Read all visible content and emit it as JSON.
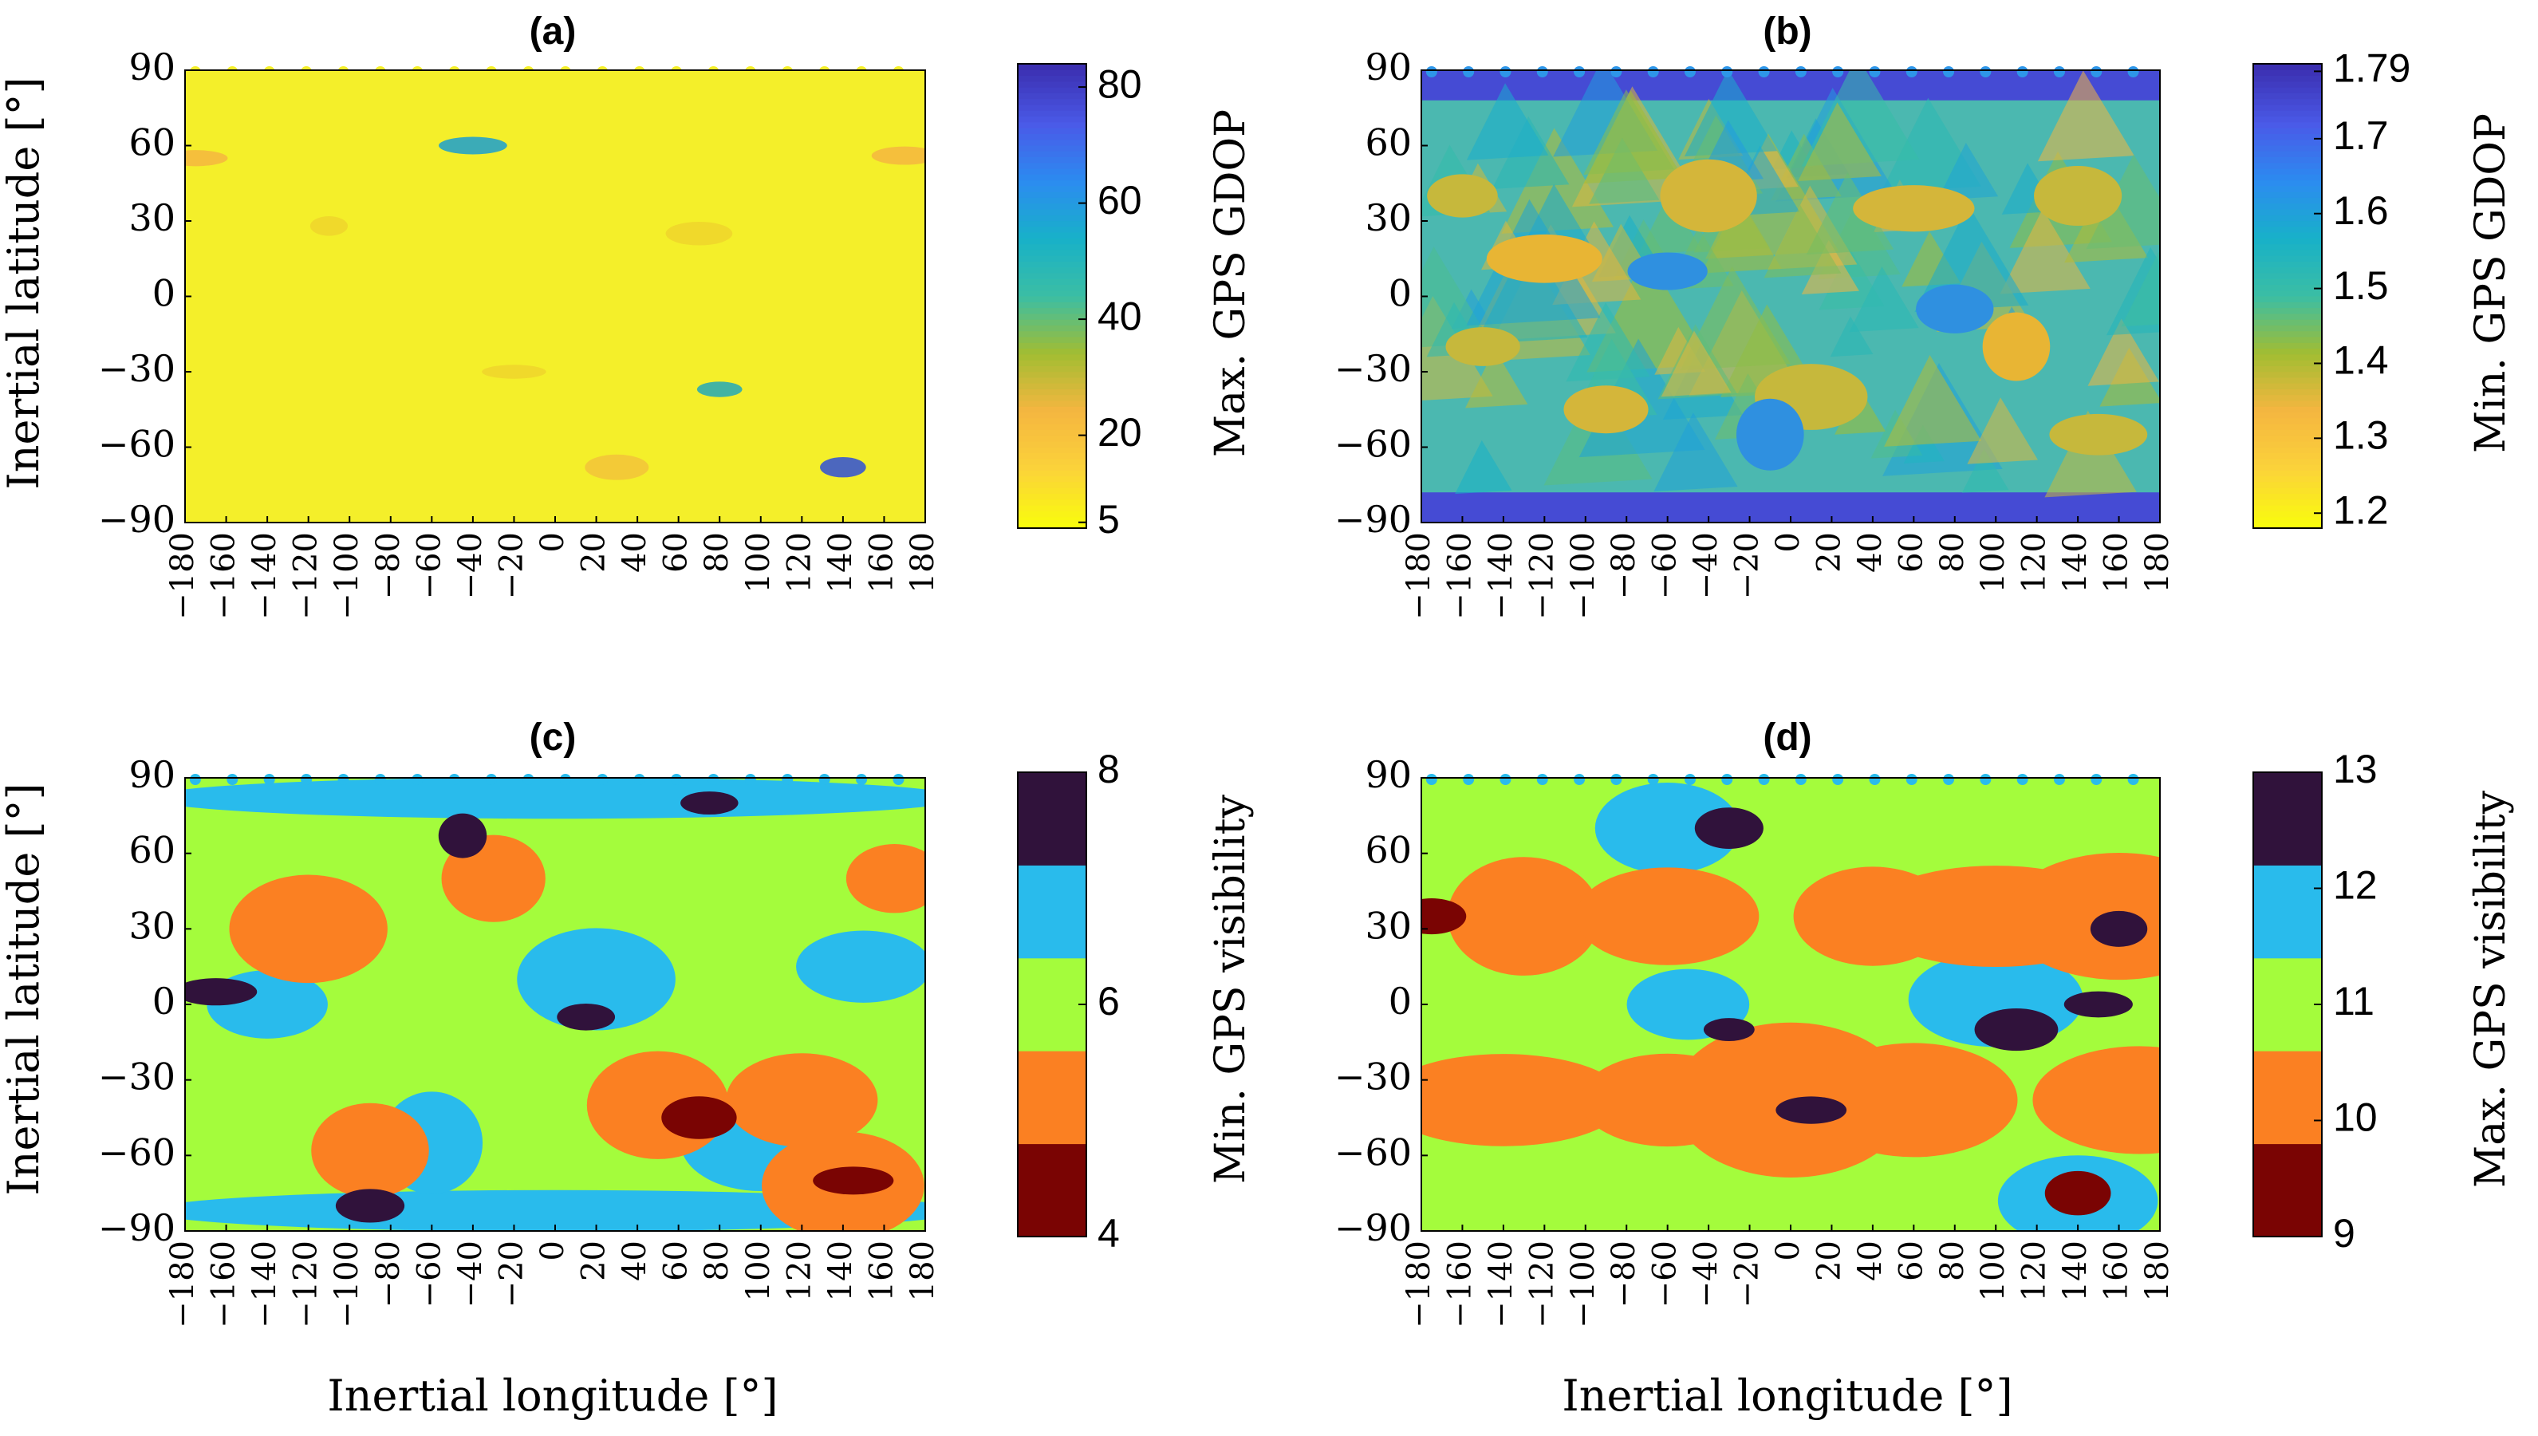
{
  "figure": {
    "x_axis_label": "Inertial longitude [°]",
    "y_axis_label": "Inertial latitude [°]"
  },
  "chart_data": [
    {
      "panel": "(a)",
      "type": "heatmap",
      "title": "(a)",
      "xlabel": "",
      "ylabel": "Inertial latitude [°]",
      "x_ticks": [
        "−180",
        "−160",
        "−140",
        "−120",
        "−100",
        "−80",
        "−60",
        "−40",
        "−20",
        "0",
        "20",
        "40",
        "60",
        "80",
        "100",
        "120",
        "140",
        "160",
        "180"
      ],
      "y_ticks": [
        "90",
        "60",
        "30",
        "0",
        "−30",
        "−60",
        "−90"
      ],
      "xlim": [
        -180,
        180
      ],
      "ylim": [
        -90,
        90
      ],
      "colorbar": {
        "label": "Max. GPS GDOP",
        "scale": "continuous",
        "range": [
          4,
          84
        ],
        "ticks": [
          "80",
          "60",
          "40",
          "20",
          "5"
        ],
        "tick_values": [
          80,
          60,
          40,
          20,
          5
        ],
        "colors": [
          "#f9fb0e",
          "#fbd23a",
          "#f5b640",
          "#a2bd32",
          "#3bbea4",
          "#18b1c8",
          "#2b8cf0",
          "#4a5ae8",
          "#3b2fb0"
        ]
      },
      "background_color": "#f4ef2a",
      "features": [
        {
          "lon": -175,
          "lat": 55,
          "value": 16,
          "color": "#f5b640"
        },
        {
          "lon": 170,
          "lat": 56,
          "value": 16,
          "color": "#f5b640"
        },
        {
          "lon": -40,
          "lat": 60,
          "value": 55,
          "color": "#1a9fd0"
        },
        {
          "lon": 80,
          "lat": -37,
          "value": 45,
          "color": "#22a8b8"
        },
        {
          "lon": 140,
          "lat": -68,
          "value": 70,
          "color": "#2e4fd8"
        },
        {
          "lon": 30,
          "lat": -68,
          "value": 14,
          "color": "#f2c33a"
        },
        {
          "lon": -110,
          "lat": 28,
          "value": 10,
          "color": "#eed52c"
        },
        {
          "lon": 70,
          "lat": 25,
          "value": 10,
          "color": "#eed52c"
        },
        {
          "lon": -20,
          "lat": -30,
          "value": 10,
          "color": "#eed52c"
        }
      ]
    },
    {
      "panel": "(b)",
      "type": "heatmap",
      "title": "(b)",
      "xlabel": "",
      "ylabel": "",
      "x_ticks": [
        "−180",
        "−160",
        "−140",
        "−120",
        "−100",
        "−80",
        "−60",
        "−40",
        "−20",
        "0",
        "20",
        "40",
        "60",
        "80",
        "100",
        "120",
        "140",
        "160",
        "180"
      ],
      "y_ticks": [
        "90",
        "60",
        "30",
        "0",
        "−30",
        "−60",
        "−90"
      ],
      "xlim": [
        -180,
        180
      ],
      "ylim": [
        -90,
        90
      ],
      "colorbar": {
        "label": "Min. GPS GDOP",
        "scale": "continuous",
        "range": [
          1.18,
          1.8
        ],
        "ticks": [
          "1.79",
          "1.7",
          "1.6",
          "1.5",
          "1.4",
          "1.3",
          "1.2"
        ],
        "tick_values": [
          1.79,
          1.7,
          1.6,
          1.5,
          1.4,
          1.3,
          1.2
        ],
        "colors": [
          "#f9fb0e",
          "#fbd23a",
          "#f5b640",
          "#a2bd32",
          "#3bbea4",
          "#18b1c8",
          "#2b8cf0",
          "#4a5ae8",
          "#3b2fb0"
        ]
      },
      "background_color": "#4bb8b0",
      "features": [
        {
          "lon": -120,
          "lat": 15,
          "value": 1.27,
          "color": "#e8b534"
        },
        {
          "lon": 110,
          "lat": -20,
          "value": 1.27,
          "color": "#e8b534"
        },
        {
          "lon": 60,
          "lat": 35,
          "value": 1.3,
          "color": "#d4b63a"
        },
        {
          "lon": -40,
          "lat": 40,
          "value": 1.3,
          "color": "#d4b63a"
        },
        {
          "lon": -90,
          "lat": -45,
          "value": 1.3,
          "color": "#d4b63a"
        },
        {
          "lon": 10,
          "lat": -40,
          "value": 1.32,
          "color": "#c6b83c"
        },
        {
          "lon": 140,
          "lat": 40,
          "value": 1.33,
          "color": "#c6b83c"
        },
        {
          "lon": -150,
          "lat": -20,
          "value": 1.33,
          "color": "#c6b83c"
        },
        {
          "lon": 150,
          "lat": -55,
          "value": 1.32,
          "color": "#c6b83c"
        },
        {
          "lon": -160,
          "lat": 40,
          "value": 1.33,
          "color": "#c6b83c"
        },
        {
          "lon": -60,
          "lat": 10,
          "value": 1.6,
          "color": "#2f90e0"
        },
        {
          "lon": 80,
          "lat": -5,
          "value": 1.6,
          "color": "#2f90e0"
        },
        {
          "lon": -10,
          "lat": -55,
          "value": 1.58,
          "color": "#2f90e0"
        }
      ],
      "pole_band_value": 1.75
    },
    {
      "panel": "(c)",
      "type": "heatmap",
      "title": "(c)",
      "xlabel": "Inertial longitude [°]",
      "ylabel": "Inertial latitude [°]",
      "x_ticks": [
        "−180",
        "−160",
        "−140",
        "−120",
        "−100",
        "−80",
        "−60",
        "−40",
        "−20",
        "0",
        "20",
        "40",
        "60",
        "80",
        "100",
        "120",
        "140",
        "160",
        "180"
      ],
      "y_ticks": [
        "90",
        "60",
        "30",
        "0",
        "−30",
        "−60",
        "−90"
      ],
      "xlim": [
        -180,
        180
      ],
      "ylim": [
        -90,
        90
      ],
      "colorbar": {
        "label": "Min. GPS visibility",
        "scale": "discrete",
        "range": [
          4,
          8
        ],
        "ticks": [
          "8",
          "6",
          "4"
        ],
        "tick_values": [
          8,
          6,
          4
        ],
        "levels": [
          {
            "value": 4,
            "color": "#7a0403"
          },
          {
            "value": 5,
            "color": "#fb8022"
          },
          {
            "value": 6,
            "color": "#a4fc3c"
          },
          {
            "value": 7,
            "color": "#29bbec"
          },
          {
            "value": 8,
            "color": "#30123b"
          }
        ]
      },
      "background_value": 6,
      "features": [
        {
          "lon": 0,
          "lat": 82,
          "value": 7
        },
        {
          "lon": 0,
          "lat": -82,
          "value": 7
        },
        {
          "lon": -140,
          "lat": 0,
          "value": 7
        },
        {
          "lon": 20,
          "lat": 10,
          "value": 7
        },
        {
          "lon": 150,
          "lat": 15,
          "value": 7
        },
        {
          "lon": -60,
          "lat": -55,
          "value": 7
        },
        {
          "lon": 100,
          "lat": -55,
          "value": 7
        },
        {
          "lon": -120,
          "lat": 30,
          "value": 5
        },
        {
          "lon": -30,
          "lat": 50,
          "value": 5
        },
        {
          "lon": 50,
          "lat": -40,
          "value": 5
        },
        {
          "lon": 120,
          "lat": -38,
          "value": 5
        },
        {
          "lon": 140,
          "lat": -72,
          "value": 5
        },
        {
          "lon": -90,
          "lat": -58,
          "value": 5
        },
        {
          "lon": 165,
          "lat": 50,
          "value": 5
        },
        {
          "lon": 75,
          "lat": 80,
          "value": 8
        },
        {
          "lon": -165,
          "lat": 5,
          "value": 8
        },
        {
          "lon": 15,
          "lat": -5,
          "value": 8
        },
        {
          "lon": -90,
          "lat": -80,
          "value": 8
        },
        {
          "lon": -45,
          "lat": 67,
          "value": 8
        },
        {
          "lon": 145,
          "lat": -70,
          "value": 4
        },
        {
          "lon": 70,
          "lat": -45,
          "value": 4
        }
      ]
    },
    {
      "panel": "(d)",
      "type": "heatmap",
      "title": "(d)",
      "xlabel": "Inertial longitude [°]",
      "ylabel": "",
      "x_ticks": [
        "−180",
        "−160",
        "−140",
        "−120",
        "−100",
        "−80",
        "−60",
        "−40",
        "−20",
        "0",
        "20",
        "40",
        "60",
        "80",
        "100",
        "120",
        "140",
        "160",
        "180"
      ],
      "y_ticks": [
        "90",
        "60",
        "30",
        "0",
        "−30",
        "−60",
        "−90"
      ],
      "xlim": [
        -180,
        180
      ],
      "ylim": [
        -90,
        90
      ],
      "colorbar": {
        "label": "Max. GPS visibility",
        "scale": "discrete",
        "range": [
          9,
          13
        ],
        "ticks": [
          "13",
          "12",
          "11",
          "10",
          "9"
        ],
        "tick_values": [
          13,
          12,
          11,
          10,
          9
        ],
        "levels": [
          {
            "value": 9,
            "color": "#7a0403"
          },
          {
            "value": 10,
            "color": "#fb8022"
          },
          {
            "value": 11,
            "color": "#a4fc3c"
          },
          {
            "value": 12,
            "color": "#29bbec"
          },
          {
            "value": 13,
            "color": "#30123b"
          }
        ]
      },
      "background_value": 11,
      "features": [
        {
          "lon": -60,
          "lat": 70,
          "value": 12
        },
        {
          "lon": 140,
          "lat": -78,
          "value": 12
        },
        {
          "lon": -50,
          "lat": 0,
          "value": 12
        },
        {
          "lon": 100,
          "lat": 2,
          "value": 12
        },
        {
          "lon": -130,
          "lat": 35,
          "value": 10
        },
        {
          "lon": -60,
          "lat": 35,
          "value": 10
        },
        {
          "lon": 40,
          "lat": 35,
          "value": 10
        },
        {
          "lon": 100,
          "lat": 35,
          "value": 10
        },
        {
          "lon": 160,
          "lat": 35,
          "value": 10
        },
        {
          "lon": -140,
          "lat": -38,
          "value": 10
        },
        {
          "lon": -60,
          "lat": -38,
          "value": 10
        },
        {
          "lon": 0,
          "lat": -38,
          "value": 10
        },
        {
          "lon": 60,
          "lat": -38,
          "value": 10
        },
        {
          "lon": 170,
          "lat": -38,
          "value": 10
        },
        {
          "lon": -30,
          "lat": 70,
          "value": 13
        },
        {
          "lon": -30,
          "lat": -10,
          "value": 13
        },
        {
          "lon": 150,
          "lat": 0,
          "value": 13
        },
        {
          "lon": 10,
          "lat": -42,
          "value": 13
        },
        {
          "lon": 160,
          "lat": 30,
          "value": 13
        },
        {
          "lon": 110,
          "lat": -10,
          "value": 13
        },
        {
          "lon": -175,
          "lat": 35,
          "value": 9
        },
        {
          "lon": 140,
          "lat": -75,
          "value": 9
        }
      ]
    }
  ]
}
